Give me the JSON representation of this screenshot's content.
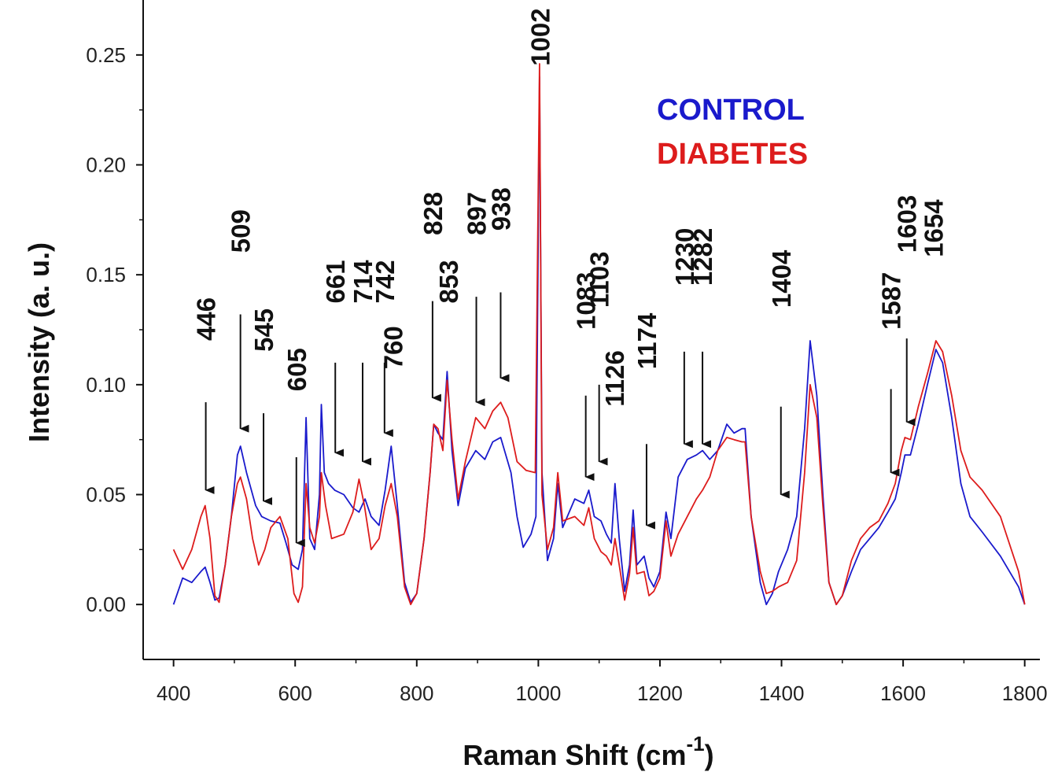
{
  "chart_data": {
    "type": "line",
    "xlabel": "Raman Shift (cm",
    "xlabel_sup": "-1",
    "xlabel_close": ")",
    "ylabel": "Intensity (a. u.)",
    "xlim": [
      350,
      1825
    ],
    "ylim": [
      -0.025,
      0.275
    ],
    "x_ticks": [
      400,
      600,
      800,
      1000,
      1200,
      1400,
      1600,
      1800
    ],
    "y_ticks": [
      0.0,
      0.05,
      0.1,
      0.15,
      0.2,
      0.25
    ],
    "y_tick_labels": [
      "0.00",
      "0.05",
      "0.10",
      "0.15",
      "0.20",
      "0.25"
    ],
    "legend_position": "top-center",
    "series": [
      {
        "name": "CONTROL",
        "color": "#1a1acc",
        "points": [
          [
            400,
            0.0
          ],
          [
            415,
            0.012
          ],
          [
            430,
            0.01
          ],
          [
            445,
            0.015
          ],
          [
            452,
            0.017
          ],
          [
            460,
            0.01
          ],
          [
            468,
            0.002
          ],
          [
            475,
            0.003
          ],
          [
            485,
            0.018
          ],
          [
            495,
            0.04
          ],
          [
            505,
            0.068
          ],
          [
            510,
            0.072
          ],
          [
            520,
            0.06
          ],
          [
            535,
            0.045
          ],
          [
            545,
            0.04
          ],
          [
            560,
            0.038
          ],
          [
            575,
            0.037
          ],
          [
            585,
            0.028
          ],
          [
            595,
            0.018
          ],
          [
            605,
            0.016
          ],
          [
            612,
            0.025
          ],
          [
            618,
            0.085
          ],
          [
            624,
            0.03
          ],
          [
            632,
            0.025
          ],
          [
            640,
            0.05
          ],
          [
            643,
            0.091
          ],
          [
            648,
            0.06
          ],
          [
            655,
            0.055
          ],
          [
            665,
            0.052
          ],
          [
            680,
            0.05
          ],
          [
            695,
            0.044
          ],
          [
            705,
            0.042
          ],
          [
            715,
            0.048
          ],
          [
            725,
            0.04
          ],
          [
            738,
            0.036
          ],
          [
            748,
            0.052
          ],
          [
            758,
            0.072
          ],
          [
            768,
            0.045
          ],
          [
            780,
            0.01
          ],
          [
            790,
            0.001
          ],
          [
            800,
            0.005
          ],
          [
            812,
            0.03
          ],
          [
            822,
            0.06
          ],
          [
            828,
            0.082
          ],
          [
            835,
            0.078
          ],
          [
            843,
            0.075
          ],
          [
            850,
            0.106
          ],
          [
            858,
            0.07
          ],
          [
            868,
            0.045
          ],
          [
            880,
            0.062
          ],
          [
            897,
            0.07
          ],
          [
            912,
            0.066
          ],
          [
            925,
            0.074
          ],
          [
            938,
            0.076
          ],
          [
            955,
            0.06
          ],
          [
            965,
            0.04
          ],
          [
            975,
            0.026
          ],
          [
            988,
            0.032
          ],
          [
            996,
            0.04
          ],
          [
            1002,
            0.24
          ],
          [
            1006,
            0.06
          ],
          [
            1015,
            0.02
          ],
          [
            1025,
            0.03
          ],
          [
            1032,
            0.055
          ],
          [
            1040,
            0.035
          ],
          [
            1060,
            0.048
          ],
          [
            1075,
            0.046
          ],
          [
            1083,
            0.052
          ],
          [
            1092,
            0.04
          ],
          [
            1103,
            0.038
          ],
          [
            1112,
            0.032
          ],
          [
            1120,
            0.028
          ],
          [
            1126,
            0.055
          ],
          [
            1133,
            0.03
          ],
          [
            1142,
            0.006
          ],
          [
            1150,
            0.018
          ],
          [
            1156,
            0.043
          ],
          [
            1162,
            0.018
          ],
          [
            1174,
            0.022
          ],
          [
            1182,
            0.012
          ],
          [
            1190,
            0.008
          ],
          [
            1200,
            0.015
          ],
          [
            1210,
            0.042
          ],
          [
            1218,
            0.03
          ],
          [
            1230,
            0.058
          ],
          [
            1245,
            0.066
          ],
          [
            1260,
            0.068
          ],
          [
            1270,
            0.07
          ],
          [
            1282,
            0.066
          ],
          [
            1295,
            0.07
          ],
          [
            1310,
            0.082
          ],
          [
            1322,
            0.078
          ],
          [
            1335,
            0.08
          ],
          [
            1340,
            0.08
          ],
          [
            1350,
            0.04
          ],
          [
            1365,
            0.01
          ],
          [
            1375,
            0.0
          ],
          [
            1385,
            0.005
          ],
          [
            1395,
            0.015
          ],
          [
            1410,
            0.025
          ],
          [
            1425,
            0.04
          ],
          [
            1438,
            0.08
          ],
          [
            1447,
            0.12
          ],
          [
            1458,
            0.095
          ],
          [
            1468,
            0.05
          ],
          [
            1478,
            0.01
          ],
          [
            1490,
            0.0
          ],
          [
            1500,
            0.004
          ],
          [
            1515,
            0.015
          ],
          [
            1530,
            0.025
          ],
          [
            1545,
            0.03
          ],
          [
            1560,
            0.035
          ],
          [
            1575,
            0.042
          ],
          [
            1587,
            0.048
          ],
          [
            1597,
            0.06
          ],
          [
            1603,
            0.068
          ],
          [
            1612,
            0.068
          ],
          [
            1625,
            0.082
          ],
          [
            1640,
            0.1
          ],
          [
            1654,
            0.116
          ],
          [
            1665,
            0.11
          ],
          [
            1680,
            0.085
          ],
          [
            1695,
            0.055
          ],
          [
            1710,
            0.04
          ],
          [
            1730,
            0.033
          ],
          [
            1760,
            0.022
          ],
          [
            1790,
            0.008
          ],
          [
            1800,
            0.0
          ]
        ]
      },
      {
        "name": "DIABETES",
        "color": "#dd1c1c",
        "points": [
          [
            400,
            0.025
          ],
          [
            415,
            0.016
          ],
          [
            430,
            0.025
          ],
          [
            445,
            0.04
          ],
          [
            452,
            0.045
          ],
          [
            460,
            0.03
          ],
          [
            468,
            0.004
          ],
          [
            475,
            0.001
          ],
          [
            485,
            0.018
          ],
          [
            495,
            0.04
          ],
          [
            505,
            0.055
          ],
          [
            510,
            0.058
          ],
          [
            520,
            0.048
          ],
          [
            530,
            0.03
          ],
          [
            540,
            0.018
          ],
          [
            550,
            0.025
          ],
          [
            560,
            0.035
          ],
          [
            575,
            0.04
          ],
          [
            588,
            0.03
          ],
          [
            598,
            0.005
          ],
          [
            605,
            0.001
          ],
          [
            612,
            0.008
          ],
          [
            618,
            0.055
          ],
          [
            624,
            0.035
          ],
          [
            632,
            0.028
          ],
          [
            640,
            0.04
          ],
          [
            643,
            0.06
          ],
          [
            650,
            0.045
          ],
          [
            660,
            0.03
          ],
          [
            680,
            0.032
          ],
          [
            695,
            0.042
          ],
          [
            705,
            0.057
          ],
          [
            714,
            0.045
          ],
          [
            725,
            0.025
          ],
          [
            738,
            0.03
          ],
          [
            748,
            0.045
          ],
          [
            758,
            0.055
          ],
          [
            768,
            0.04
          ],
          [
            780,
            0.008
          ],
          [
            790,
            0.0
          ],
          [
            800,
            0.005
          ],
          [
            812,
            0.03
          ],
          [
            822,
            0.06
          ],
          [
            828,
            0.082
          ],
          [
            835,
            0.08
          ],
          [
            843,
            0.07
          ],
          [
            850,
            0.102
          ],
          [
            858,
            0.075
          ],
          [
            868,
            0.048
          ],
          [
            880,
            0.065
          ],
          [
            897,
            0.085
          ],
          [
            912,
            0.08
          ],
          [
            925,
            0.088
          ],
          [
            938,
            0.092
          ],
          [
            950,
            0.085
          ],
          [
            965,
            0.065
          ],
          [
            980,
            0.061
          ],
          [
            995,
            0.06
          ],
          [
            1002,
            0.246
          ],
          [
            1006,
            0.05
          ],
          [
            1015,
            0.025
          ],
          [
            1025,
            0.035
          ],
          [
            1032,
            0.06
          ],
          [
            1040,
            0.038
          ],
          [
            1060,
            0.04
          ],
          [
            1075,
            0.036
          ],
          [
            1083,
            0.044
          ],
          [
            1092,
            0.03
          ],
          [
            1103,
            0.024
          ],
          [
            1112,
            0.022
          ],
          [
            1120,
            0.018
          ],
          [
            1126,
            0.03
          ],
          [
            1133,
            0.018
          ],
          [
            1142,
            0.002
          ],
          [
            1150,
            0.014
          ],
          [
            1156,
            0.035
          ],
          [
            1162,
            0.014
          ],
          [
            1174,
            0.015
          ],
          [
            1182,
            0.004
          ],
          [
            1190,
            0.006
          ],
          [
            1200,
            0.012
          ],
          [
            1210,
            0.038
          ],
          [
            1218,
            0.022
          ],
          [
            1230,
            0.032
          ],
          [
            1245,
            0.04
          ],
          [
            1260,
            0.048
          ],
          [
            1270,
            0.052
          ],
          [
            1282,
            0.058
          ],
          [
            1295,
            0.07
          ],
          [
            1310,
            0.076
          ],
          [
            1322,
            0.075
          ],
          [
            1335,
            0.074
          ],
          [
            1340,
            0.074
          ],
          [
            1350,
            0.04
          ],
          [
            1365,
            0.015
          ],
          [
            1375,
            0.005
          ],
          [
            1385,
            0.006
          ],
          [
            1395,
            0.008
          ],
          [
            1410,
            0.01
          ],
          [
            1425,
            0.02
          ],
          [
            1438,
            0.06
          ],
          [
            1447,
            0.1
          ],
          [
            1458,
            0.085
          ],
          [
            1468,
            0.045
          ],
          [
            1478,
            0.01
          ],
          [
            1490,
            0.0
          ],
          [
            1500,
            0.004
          ],
          [
            1515,
            0.02
          ],
          [
            1530,
            0.03
          ],
          [
            1545,
            0.035
          ],
          [
            1560,
            0.038
          ],
          [
            1575,
            0.046
          ],
          [
            1587,
            0.055
          ],
          [
            1597,
            0.07
          ],
          [
            1603,
            0.076
          ],
          [
            1612,
            0.075
          ],
          [
            1625,
            0.09
          ],
          [
            1640,
            0.105
          ],
          [
            1654,
            0.12
          ],
          [
            1665,
            0.115
          ],
          [
            1680,
            0.095
          ],
          [
            1695,
            0.07
          ],
          [
            1710,
            0.058
          ],
          [
            1730,
            0.052
          ],
          [
            1760,
            0.04
          ],
          [
            1790,
            0.015
          ],
          [
            1800,
            0.0
          ]
        ]
      }
    ],
    "annotations": [
      {
        "label": "446",
        "x": 453,
        "label_y": 0.12,
        "arrow_from": 0.092,
        "arrow_to": 0.052
      },
      {
        "label": "509",
        "x": 510,
        "label_y": 0.16,
        "arrow_from": 0.132,
        "arrow_to": 0.08
      },
      {
        "label": "545",
        "x": 548,
        "label_y": 0.115,
        "arrow_from": 0.087,
        "arrow_to": 0.047
      },
      {
        "label": "605",
        "x": 602,
        "label_y": 0.097,
        "arrow_from": 0.067,
        "arrow_to": 0.028
      },
      {
        "label": "661",
        "x": 666,
        "label_y": 0.137,
        "arrow_from": 0.11,
        "arrow_to": 0.069
      },
      {
        "label": "714",
        "x": 711,
        "label_y": 0.137,
        "arrow_from": 0.11,
        "arrow_to": 0.065
      },
      {
        "label": "742",
        "x": 747,
        "label_y": 0.137,
        "arrow_from": 0.11,
        "arrow_to": 0.078
      },
      {
        "label": "760",
        "x": 761,
        "label_y": 0.107,
        "arrow_from": null,
        "arrow_to": null
      },
      {
        "label": "828",
        "x": 826,
        "label_y": 0.168,
        "arrow_from": 0.138,
        "arrow_to": 0.094
      },
      {
        "label": "853",
        "x": 852,
        "label_y": 0.137,
        "arrow_from": null,
        "arrow_to": null
      },
      {
        "label": "897",
        "x": 898,
        "label_y": 0.168,
        "arrow_from": 0.14,
        "arrow_to": 0.092
      },
      {
        "label": "938",
        "x": 938,
        "label_y": 0.17,
        "arrow_from": 0.142,
        "arrow_to": 0.103
      },
      {
        "label": "1002",
        "x": 1003,
        "label_y": 0.245,
        "arrow_from": null,
        "arrow_to": null
      },
      {
        "label": "1083",
        "x": 1078,
        "label_y": 0.125,
        "arrow_from": 0.095,
        "arrow_to": 0.058
      },
      {
        "label": "1103",
        "x": 1100,
        "label_y": 0.135,
        "arrow_from": 0.1,
        "arrow_to": 0.065
      },
      {
        "label": "1126",
        "x": 1125,
        "label_y": 0.09,
        "arrow_from": null,
        "arrow_to": null
      },
      {
        "label": "1174",
        "x": 1178,
        "label_y": 0.107,
        "arrow_from": 0.073,
        "arrow_to": 0.036
      },
      {
        "label": "1230",
        "x": 1240,
        "label_y": 0.145,
        "arrow_from": 0.115,
        "arrow_to": 0.073
      },
      {
        "label": "1282",
        "x": 1270,
        "label_y": 0.145,
        "arrow_from": 0.115,
        "arrow_to": 0.073
      },
      {
        "label": "1404",
        "x": 1399,
        "label_y": 0.135,
        "arrow_from": 0.09,
        "arrow_to": 0.05
      },
      {
        "label": "1587",
        "x": 1580,
        "label_y": 0.125,
        "arrow_from": 0.098,
        "arrow_to": 0.06
      },
      {
        "label": "1603",
        "x": 1606,
        "label_y": 0.16,
        "arrow_from": 0.121,
        "arrow_to": 0.083
      },
      {
        "label": "1654",
        "x": 1650,
        "label_y": 0.158,
        "arrow_from": null,
        "arrow_to": null
      }
    ]
  }
}
